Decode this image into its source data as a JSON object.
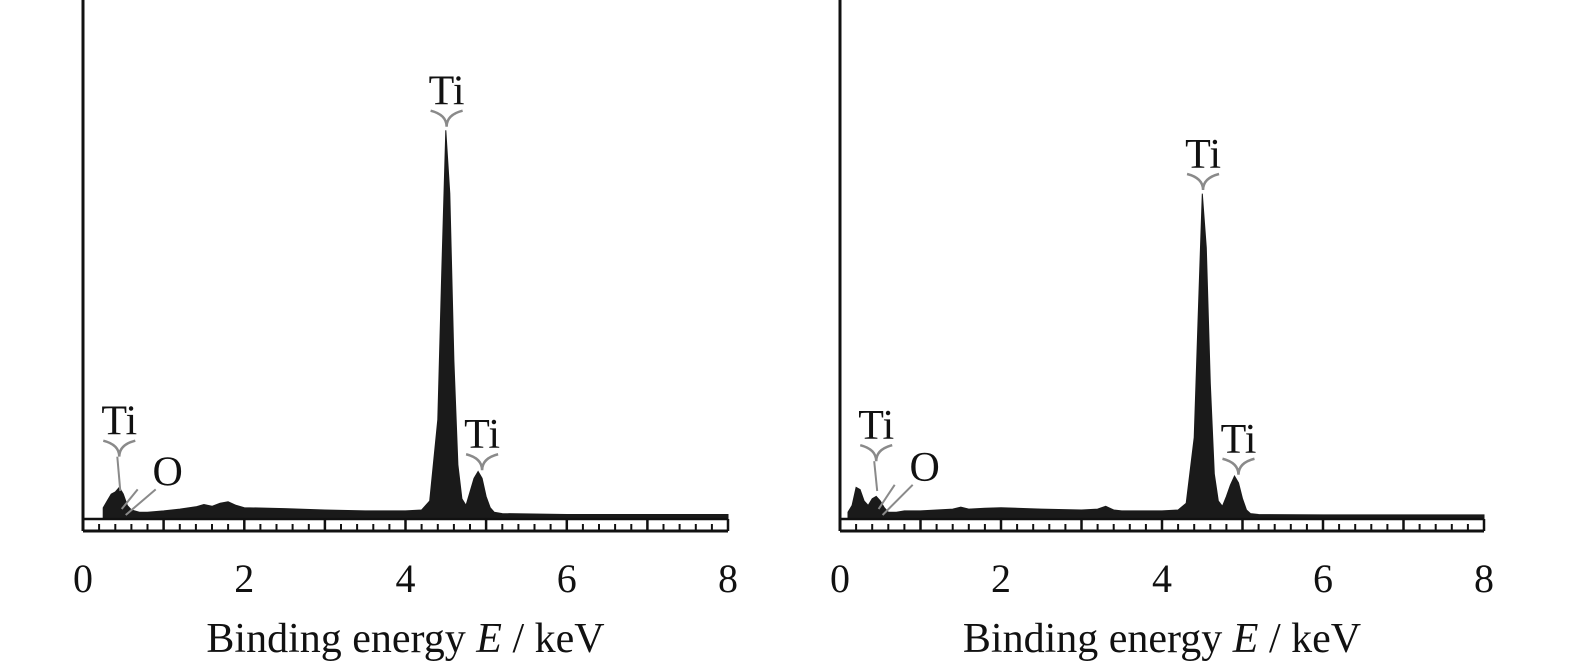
{
  "colors": {
    "spectrum": "#1a1a1a",
    "axis": "#111111",
    "marker": "#8a8a8a",
    "background": "#ffffff"
  },
  "chart_data": [
    {
      "type": "area",
      "xlabel_prefix": "Binding energy ",
      "xlabel_var": "E",
      "xlabel_suffix": " / keV",
      "xlim": [
        0,
        8
      ],
      "xticks": [
        "0",
        "2",
        "4",
        "6",
        "8"
      ],
      "grid": false,
      "y_axis_ticks": false,
      "annotations": [
        {
          "text": "Ti",
          "x": 0.45,
          "y": 0.16
        },
        {
          "text": "O",
          "x": 0.53,
          "y": 0.07
        },
        {
          "text": "Ti",
          "x": 4.51,
          "y": 0.89
        },
        {
          "text": "Ti",
          "x": 4.95,
          "y": 0.13
        }
      ],
      "spectrum": {
        "x": [
          0.25,
          0.3,
          0.35,
          0.4,
          0.45,
          0.5,
          0.55,
          0.6,
          0.7,
          0.8,
          1.0,
          1.2,
          1.4,
          1.5,
          1.6,
          1.7,
          1.8,
          1.9,
          2.0,
          2.5,
          3.0,
          3.5,
          4.0,
          4.2,
          4.3,
          4.4,
          4.45,
          4.5,
          4.55,
          4.6,
          4.65,
          4.7,
          4.75,
          4.8,
          4.85,
          4.9,
          4.95,
          5.0,
          5.05,
          5.1,
          5.2,
          6.0,
          7.0,
          8.0
        ],
        "y": [
          0.025,
          0.04,
          0.055,
          0.06,
          0.07,
          0.055,
          0.03,
          0.02,
          0.015,
          0.015,
          0.018,
          0.022,
          0.027,
          0.032,
          0.028,
          0.035,
          0.038,
          0.03,
          0.025,
          0.023,
          0.02,
          0.018,
          0.018,
          0.02,
          0.04,
          0.22,
          0.55,
          0.86,
          0.72,
          0.35,
          0.12,
          0.045,
          0.03,
          0.06,
          0.09,
          0.105,
          0.09,
          0.05,
          0.025,
          0.015,
          0.012,
          0.01,
          0.01,
          0.01
        ]
      }
    },
    {
      "type": "area",
      "xlabel_prefix": "Binding energy ",
      "xlabel_var": "E",
      "xlabel_suffix": " / keV",
      "xlim": [
        0,
        8
      ],
      "xticks": [
        "0",
        "2",
        "4",
        "6",
        "8"
      ],
      "grid": false,
      "y_axis_ticks": false,
      "annotations": [
        {
          "text": "Ti",
          "x": 0.45,
          "y": 0.15
        },
        {
          "text": "O",
          "x": 0.53,
          "y": 0.08
        },
        {
          "text": "Ti",
          "x": 4.51,
          "y": 0.75
        },
        {
          "text": "Ti",
          "x": 4.95,
          "y": 0.12
        }
      ],
      "spectrum": {
        "x": [
          0.1,
          0.15,
          0.2,
          0.25,
          0.3,
          0.35,
          0.4,
          0.45,
          0.5,
          0.55,
          0.6,
          0.7,
          0.8,
          1.0,
          1.2,
          1.4,
          1.5,
          1.6,
          1.8,
          2.0,
          2.5,
          3.0,
          3.2,
          3.3,
          3.4,
          3.5,
          4.0,
          4.2,
          4.3,
          4.4,
          4.45,
          4.5,
          4.55,
          4.6,
          4.65,
          4.7,
          4.75,
          4.8,
          4.85,
          4.9,
          4.95,
          5.0,
          5.05,
          5.1,
          5.2,
          6.0,
          7.0,
          8.0
        ],
        "y": [
          0.015,
          0.03,
          0.07,
          0.065,
          0.04,
          0.03,
          0.045,
          0.05,
          0.04,
          0.025,
          0.015,
          0.015,
          0.018,
          0.018,
          0.02,
          0.022,
          0.026,
          0.022,
          0.024,
          0.025,
          0.022,
          0.02,
          0.022,
          0.028,
          0.02,
          0.018,
          0.018,
          0.02,
          0.035,
          0.18,
          0.45,
          0.72,
          0.6,
          0.3,
          0.1,
          0.04,
          0.028,
          0.05,
          0.075,
          0.095,
          0.08,
          0.045,
          0.02,
          0.012,
          0.01,
          0.009,
          0.009,
          0.009
        ]
      }
    }
  ]
}
